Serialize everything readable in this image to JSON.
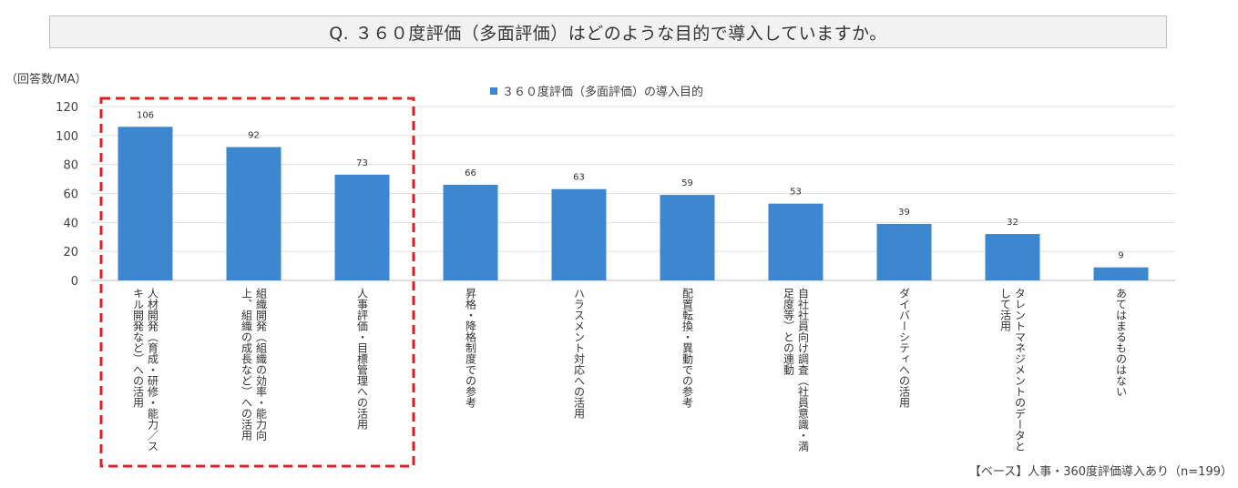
{
  "question": "Q. ３６０度評価（多面評価）はどのような目的で導入していますか。",
  "unit_label": "（回答数/MA）",
  "base_note": "【ベース】人事・360度評価導入あり（n=199）",
  "chart_data": {
    "type": "bar",
    "title": "",
    "legend_position": "top-center",
    "ylim": [
      0,
      120
    ],
    "y_ticks": [
      0,
      20,
      40,
      60,
      80,
      100,
      120
    ],
    "grid": true,
    "bar_color": "#3d87d1",
    "highlight_color": "#e02020",
    "highlight_first_n": 3,
    "categories": [
      "人材開発（育成・研修・能力／スキル開発など）への活用",
      "組織開発（組織の効率・能力向上、組織の成長など）への活用",
      "人事評価・目標管理への活用",
      "昇格・降格制度での参考",
      "ハラスメント対応への活用",
      "配置転換・異動での参考",
      "自社社員向け調査（社員意識・満足度等）との連動",
      "ダイバーシティへの活用",
      "タレントマネジメントのデータとして活用",
      "あてはまるものはない"
    ],
    "series": [
      {
        "name": "３６０度評価（多面評価）の導入目的",
        "values": [
          106,
          92,
          73,
          66,
          63,
          59,
          53,
          39,
          32,
          9
        ]
      }
    ]
  }
}
